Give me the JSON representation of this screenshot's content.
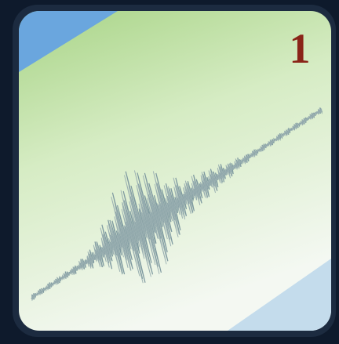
{
  "badge": "1"
}
